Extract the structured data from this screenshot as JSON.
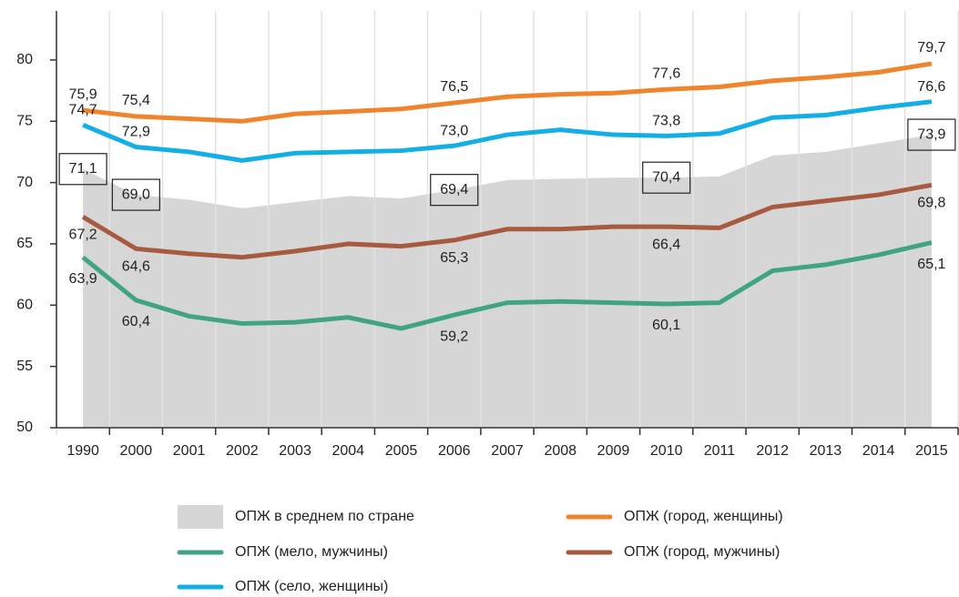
{
  "chart_data": {
    "type": "line",
    "categories": [
      "1990",
      "2000",
      "2001",
      "2002",
      "2003",
      "2004",
      "2005",
      "2006",
      "2007",
      "2008",
      "2009",
      "2010",
      "2011",
      "2012",
      "2013",
      "2014",
      "2015"
    ],
    "ylim": [
      50,
      84
    ],
    "yticks": [
      50,
      55,
      60,
      65,
      70,
      75,
      80
    ],
    "series": [
      {
        "name": "ОПЖ в среднем по стране",
        "type": "area",
        "color": "#d6d6d6",
        "values": [
          71.1,
          69.0,
          68.6,
          67.9,
          68.4,
          68.9,
          68.7,
          69.4,
          70.2,
          70.3,
          70.4,
          70.4,
          70.5,
          72.2,
          72.5,
          73.2,
          73.9
        ],
        "value_labels": [
          "71,1",
          "69,0",
          null,
          null,
          null,
          null,
          null,
          "69,4",
          null,
          null,
          null,
          "70,4",
          null,
          null,
          null,
          null,
          "73,9"
        ]
      },
      {
        "name": "ОПЖ (город, женщины)",
        "type": "line",
        "color": "#f0842a",
        "values": [
          75.9,
          75.4,
          75.2,
          75.0,
          75.6,
          75.8,
          76.0,
          76.5,
          77.0,
          77.2,
          77.3,
          77.6,
          77.8,
          78.3,
          78.6,
          79.0,
          79.7
        ],
        "value_labels": [
          "75,9",
          "75,4",
          null,
          null,
          null,
          null,
          null,
          "76,5",
          null,
          null,
          null,
          "77,6",
          null,
          null,
          null,
          null,
          "79,7"
        ]
      },
      {
        "name": "ОПЖ (мело, мужчины)",
        "type": "line",
        "color": "#3fa384",
        "values": [
          63.9,
          60.4,
          59.1,
          58.5,
          58.6,
          59.0,
          58.1,
          59.2,
          60.2,
          60.3,
          60.2,
          60.1,
          60.2,
          62.8,
          63.3,
          64.1,
          65.1
        ],
        "value_labels": [
          "63,9",
          "60,4",
          null,
          null,
          null,
          null,
          null,
          "59,2",
          null,
          null,
          null,
          "60,1",
          null,
          null,
          null,
          null,
          "65,1"
        ]
      },
      {
        "name": "ОПЖ (город, мужчины)",
        "type": "line",
        "color": "#a85a40",
        "values": [
          67.2,
          64.6,
          64.2,
          63.9,
          64.4,
          65.0,
          64.8,
          65.3,
          66.2,
          66.2,
          66.4,
          66.4,
          66.3,
          68.0,
          68.5,
          69.0,
          69.8
        ],
        "value_labels": [
          "67,2",
          "64,6",
          null,
          null,
          null,
          null,
          null,
          "65,3",
          null,
          null,
          null,
          "66,4",
          null,
          null,
          null,
          null,
          "69,8"
        ]
      },
      {
        "name": "ОПЖ (село, женщины)",
        "type": "line",
        "color": "#14aee6",
        "values": [
          74.7,
          72.9,
          72.5,
          71.8,
          72.4,
          72.5,
          72.6,
          73.0,
          73.9,
          74.3,
          73.9,
          73.8,
          74.0,
          75.3,
          75.5,
          76.1,
          76.6
        ],
        "value_labels": [
          "74,7",
          "72,9",
          null,
          null,
          null,
          null,
          null,
          "73,0",
          null,
          null,
          null,
          "73,8",
          null,
          null,
          null,
          null,
          "76,6"
        ]
      }
    ]
  }
}
